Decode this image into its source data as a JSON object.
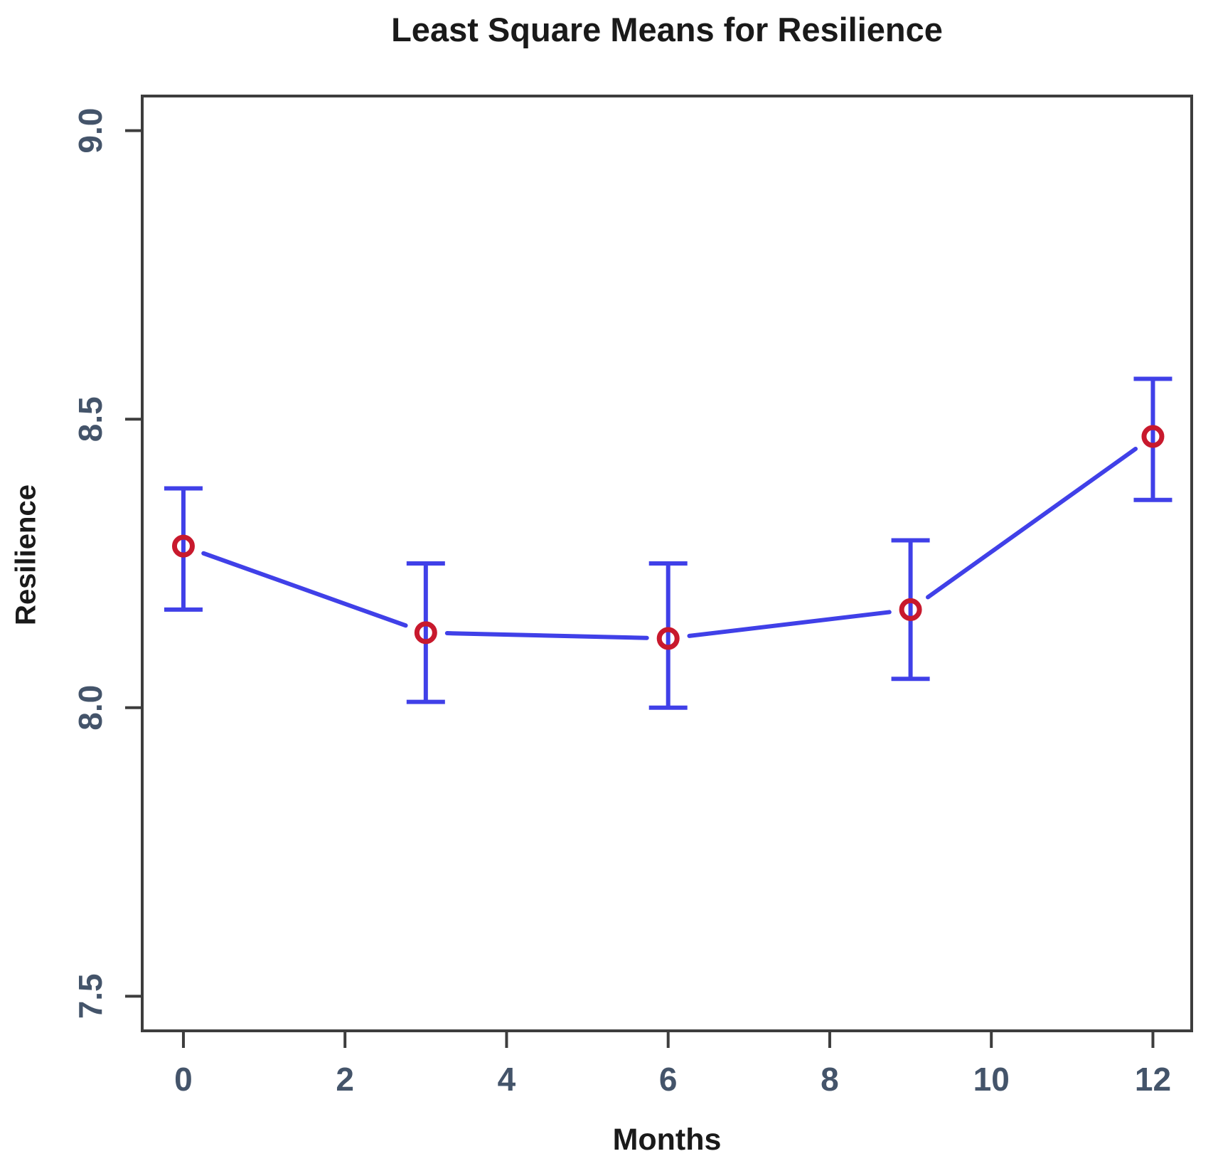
{
  "chart_data": {
    "type": "line",
    "title": "Least Square Means for Resilience",
    "xlabel": "Months",
    "ylabel": "Resilience",
    "x": [
      0,
      3,
      6,
      9,
      12
    ],
    "y": [
      8.28,
      8.13,
      8.12,
      8.17,
      8.47
    ],
    "ci_lower": [
      8.17,
      8.01,
      8.0,
      8.05,
      8.36
    ],
    "ci_upper": [
      8.38,
      8.25,
      8.25,
      8.29,
      8.57
    ],
    "error_bars": true,
    "marker": "open-circle",
    "line_style": "solid-with-gaps-at-points",
    "x_ticks": [
      0,
      2,
      4,
      6,
      8,
      10,
      12
    ],
    "x_tick_labels": [
      "0",
      "2",
      "4",
      "6",
      "8",
      "10",
      "12"
    ],
    "y_ticks": [
      7.5,
      8.0,
      8.5,
      9.0
    ],
    "y_tick_labels": [
      "7.5",
      "8.0",
      "8.5",
      "9.0"
    ],
    "xlim": [
      -0.51,
      12.48
    ],
    "ylim": [
      7.44,
      9.06
    ],
    "grid": false,
    "legend": false,
    "colors": {
      "line": "#4040e8",
      "marker": "#c8192d",
      "axis": "#3d3d3d",
      "tick_label": "#44546a",
      "text": "#1a1a1a"
    }
  }
}
